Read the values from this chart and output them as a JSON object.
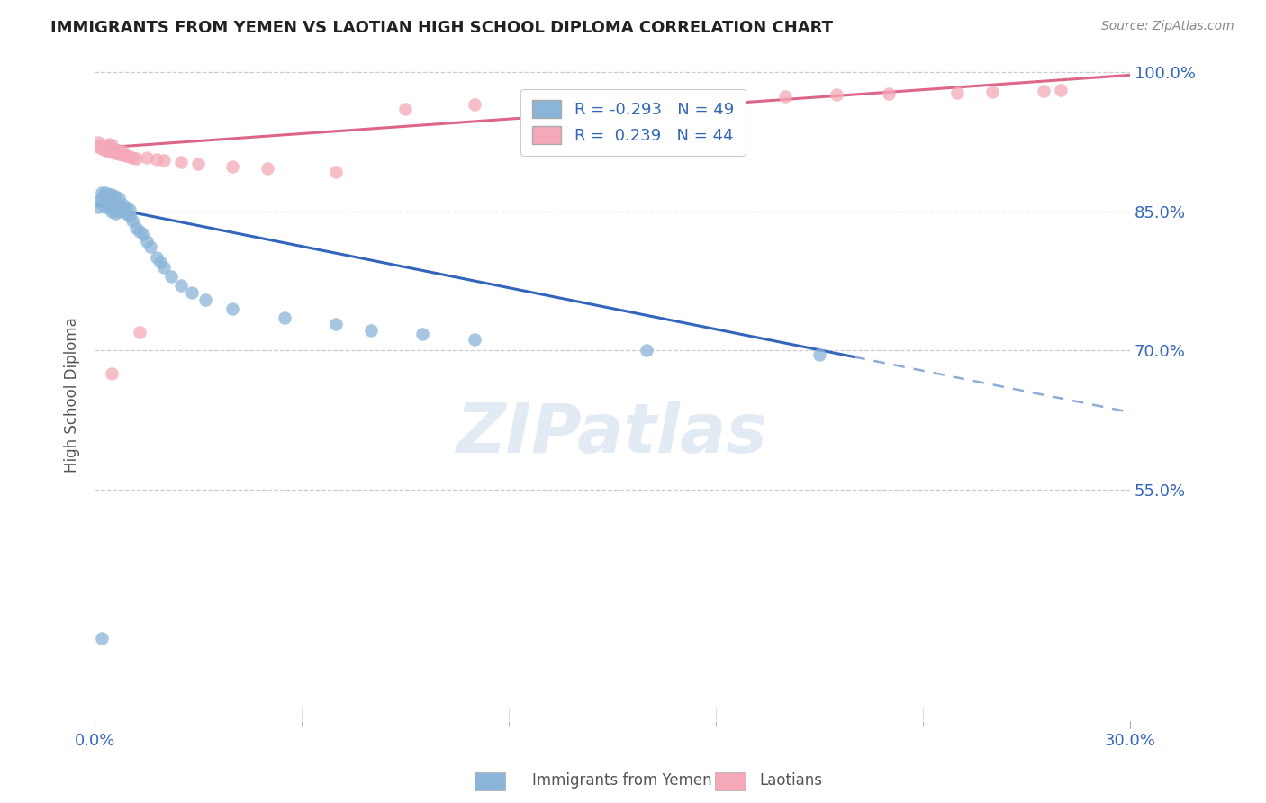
{
  "title": "IMMIGRANTS FROM YEMEN VS LAOTIAN HIGH SCHOOL DIPLOMA CORRELATION CHART",
  "source": "Source: ZipAtlas.com",
  "ylabel": "High School Diploma",
  "xlabel_blue": "Immigrants from Yemen",
  "xlabel_pink": "Laotians",
  "x_min": 0.0,
  "x_max": 0.3,
  "y_min": 0.3,
  "y_max": 1.005,
  "ytick_labels": [
    "100.0%",
    "85.0%",
    "70.0%",
    "55.0%"
  ],
  "ytick_values": [
    1.0,
    0.85,
    0.7,
    0.55
  ],
  "xtick_labels": [
    "0.0%",
    "30.0%"
  ],
  "xtick_values": [
    0.0,
    0.3
  ],
  "xtick_minor_values": [
    0.06,
    0.12,
    0.18,
    0.24
  ],
  "legend_blue_r": "-0.293",
  "legend_blue_n": "49",
  "legend_pink_r": " 0.239",
  "legend_pink_n": "44",
  "blue_color": "#8ab4d8",
  "pink_color": "#f4a8b8",
  "blue_line_color": "#3366bb",
  "pink_line_color": "#dd6688",
  "watermark": "ZIPatlas",
  "blue_x": [
    0.001,
    0.001,
    0.002,
    0.002,
    0.003,
    0.003,
    0.003,
    0.004,
    0.004,
    0.004,
    0.005,
    0.005,
    0.005,
    0.005,
    0.006,
    0.006,
    0.006,
    0.006,
    0.007,
    0.007,
    0.007,
    0.008,
    0.008,
    0.009,
    0.009,
    0.01,
    0.01,
    0.011,
    0.012,
    0.013,
    0.014,
    0.015,
    0.016,
    0.018,
    0.019,
    0.02,
    0.022,
    0.025,
    0.028,
    0.032,
    0.04,
    0.055,
    0.07,
    0.08,
    0.095,
    0.11,
    0.16,
    0.21,
    0.002
  ],
  "blue_y": [
    0.855,
    0.86,
    0.865,
    0.87,
    0.855,
    0.865,
    0.87,
    0.855,
    0.86,
    0.868,
    0.85,
    0.858,
    0.862,
    0.868,
    0.848,
    0.855,
    0.86,
    0.866,
    0.85,
    0.856,
    0.864,
    0.852,
    0.858,
    0.848,
    0.855,
    0.845,
    0.852,
    0.84,
    0.832,
    0.828,
    0.825,
    0.818,
    0.812,
    0.8,
    0.795,
    0.79,
    0.78,
    0.77,
    0.762,
    0.755,
    0.745,
    0.735,
    0.728,
    0.722,
    0.718,
    0.712,
    0.7,
    0.695,
    0.39
  ],
  "pink_x": [
    0.001,
    0.001,
    0.002,
    0.002,
    0.003,
    0.003,
    0.004,
    0.004,
    0.004,
    0.005,
    0.005,
    0.005,
    0.006,
    0.006,
    0.007,
    0.007,
    0.008,
    0.008,
    0.009,
    0.01,
    0.011,
    0.012,
    0.013,
    0.015,
    0.018,
    0.02,
    0.025,
    0.03,
    0.04,
    0.05,
    0.07,
    0.09,
    0.11,
    0.14,
    0.16,
    0.185,
    0.2,
    0.215,
    0.23,
    0.25,
    0.26,
    0.275,
    0.28,
    0.005
  ],
  "pink_y": [
    0.92,
    0.925,
    0.918,
    0.922,
    0.916,
    0.92,
    0.915,
    0.919,
    0.923,
    0.914,
    0.918,
    0.922,
    0.913,
    0.917,
    0.912,
    0.916,
    0.911,
    0.915,
    0.91,
    0.909,
    0.908,
    0.907,
    0.72,
    0.908,
    0.906,
    0.905,
    0.903,
    0.901,
    0.898,
    0.896,
    0.892,
    0.96,
    0.965,
    0.968,
    0.97,
    0.972,
    0.974,
    0.976,
    0.977,
    0.978,
    0.979,
    0.98,
    0.981,
    0.675
  ]
}
